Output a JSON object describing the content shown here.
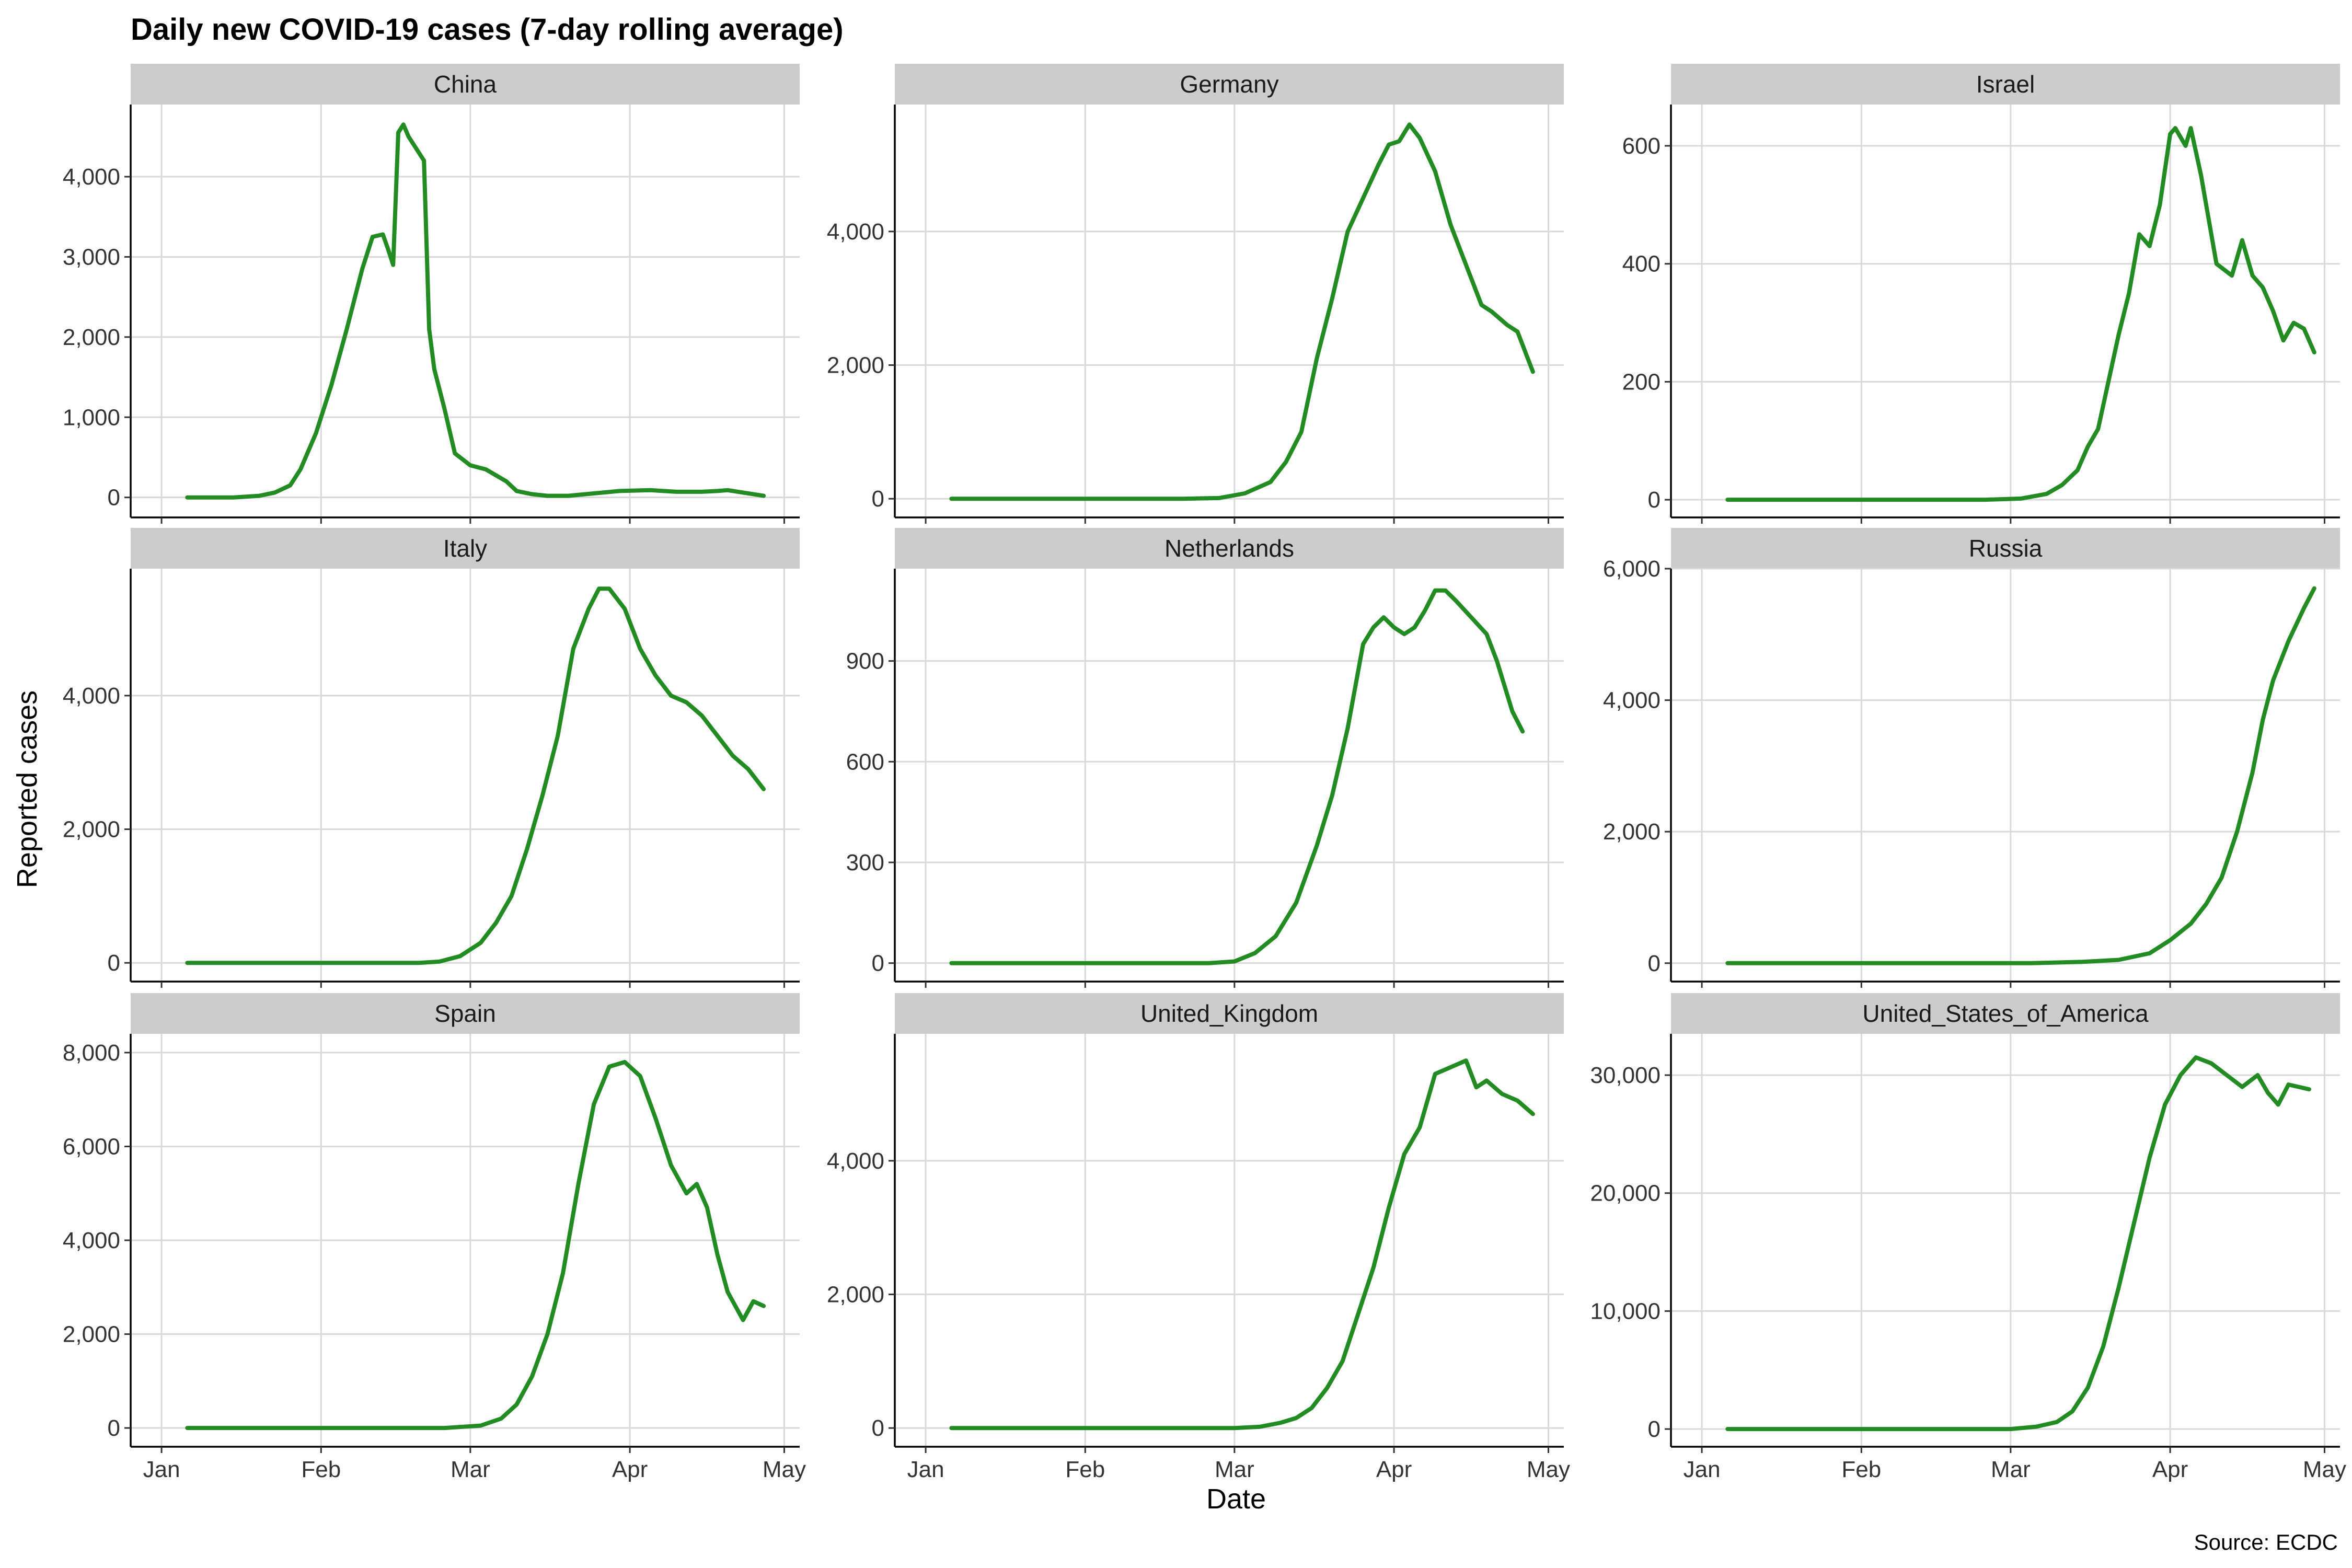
{
  "chart_data": {
    "type": "line",
    "title": "Daily new COVID-19 cases (7-day rolling average)",
    "xlabel": "Date",
    "ylabel": "Reported cases",
    "caption": "Source: ECDC",
    "x_ticks": [
      "Jan",
      "Feb",
      "Mar",
      "Apr",
      "May"
    ],
    "x_tick_dates": [
      "2020-01-01",
      "2020-02-01",
      "2020-03-01",
      "2020-04-01",
      "2020-05-01"
    ],
    "xlim": [
      "2019-12-26",
      "2020-05-04"
    ],
    "series_start": "2020-01-06",
    "grid": true,
    "colors": {
      "line": "#228B22",
      "strip": "#cccccc",
      "grid": "#d9d9d9"
    },
    "facets": [
      {
        "name": "China",
        "ylim": [
          -250,
          4900
        ],
        "y_ticks": [
          0,
          1000,
          2000,
          3000,
          4000
        ],
        "y_tick_labels": [
          "0",
          "1,000",
          "2,000",
          "3,000",
          "4,000"
        ],
        "points": [
          [
            "2020-01-06",
            0
          ],
          [
            "2020-01-10",
            0
          ],
          [
            "2020-01-15",
            0
          ],
          [
            "2020-01-20",
            20
          ],
          [
            "2020-01-23",
            60
          ],
          [
            "2020-01-26",
            150
          ],
          [
            "2020-01-28",
            350
          ],
          [
            "2020-01-31",
            800
          ],
          [
            "2020-02-03",
            1400
          ],
          [
            "2020-02-06",
            2100
          ],
          [
            "2020-02-09",
            2850
          ],
          [
            "2020-02-11",
            3250
          ],
          [
            "2020-02-13",
            3280
          ],
          [
            "2020-02-14",
            3100
          ],
          [
            "2020-02-15",
            2900
          ],
          [
            "2020-02-16",
            4550
          ],
          [
            "2020-02-17",
            4650
          ],
          [
            "2020-02-18",
            4500
          ],
          [
            "2020-02-20",
            4300
          ],
          [
            "2020-02-21",
            4200
          ],
          [
            "2020-02-22",
            2100
          ],
          [
            "2020-02-23",
            1600
          ],
          [
            "2020-02-25",
            1100
          ],
          [
            "2020-02-27",
            550
          ],
          [
            "2020-03-01",
            400
          ],
          [
            "2020-03-04",
            350
          ],
          [
            "2020-03-08",
            200
          ],
          [
            "2020-03-10",
            80
          ],
          [
            "2020-03-13",
            40
          ],
          [
            "2020-03-16",
            20
          ],
          [
            "2020-03-20",
            20
          ],
          [
            "2020-03-25",
            50
          ],
          [
            "2020-03-30",
            80
          ],
          [
            "2020-04-05",
            90
          ],
          [
            "2020-04-10",
            70
          ],
          [
            "2020-04-15",
            70
          ],
          [
            "2020-04-18",
            80
          ],
          [
            "2020-04-20",
            90
          ],
          [
            "2020-04-23",
            60
          ],
          [
            "2020-04-27",
            20
          ]
        ]
      },
      {
        "name": "Germany",
        "ylim": [
          -280,
          5900
        ],
        "y_ticks": [
          0,
          2000,
          4000
        ],
        "y_tick_labels": [
          "0",
          "2,000",
          "4,000"
        ],
        "points": [
          [
            "2020-01-06",
            0
          ],
          [
            "2020-02-20",
            0
          ],
          [
            "2020-02-27",
            10
          ],
          [
            "2020-03-03",
            80
          ],
          [
            "2020-03-08",
            250
          ],
          [
            "2020-03-11",
            550
          ],
          [
            "2020-03-14",
            1000
          ],
          [
            "2020-03-17",
            2100
          ],
          [
            "2020-03-20",
            3000
          ],
          [
            "2020-03-23",
            4000
          ],
          [
            "2020-03-26",
            4500
          ],
          [
            "2020-03-29",
            5000
          ],
          [
            "2020-03-31",
            5300
          ],
          [
            "2020-04-02",
            5350
          ],
          [
            "2020-04-04",
            5600
          ],
          [
            "2020-04-06",
            5400
          ],
          [
            "2020-04-09",
            4900
          ],
          [
            "2020-04-12",
            4100
          ],
          [
            "2020-04-15",
            3500
          ],
          [
            "2020-04-18",
            2900
          ],
          [
            "2020-04-20",
            2800
          ],
          [
            "2020-04-23",
            2600
          ],
          [
            "2020-04-25",
            2500
          ],
          [
            "2020-04-28",
            1900
          ]
        ]
      },
      {
        "name": "Israel",
        "ylim": [
          -30,
          670
        ],
        "y_ticks": [
          0,
          200,
          400,
          600
        ],
        "y_tick_labels": [
          "0",
          "200",
          "400",
          "600"
        ],
        "points": [
          [
            "2020-01-06",
            0
          ],
          [
            "2020-02-25",
            0
          ],
          [
            "2020-03-03",
            2
          ],
          [
            "2020-03-08",
            10
          ],
          [
            "2020-03-11",
            25
          ],
          [
            "2020-03-14",
            50
          ],
          [
            "2020-03-16",
            90
          ],
          [
            "2020-03-18",
            120
          ],
          [
            "2020-03-20",
            200
          ],
          [
            "2020-03-22",
            280
          ],
          [
            "2020-03-24",
            350
          ],
          [
            "2020-03-26",
            450
          ],
          [
            "2020-03-28",
            430
          ],
          [
            "2020-03-30",
            500
          ],
          [
            "2020-04-01",
            620
          ],
          [
            "2020-04-02",
            630
          ],
          [
            "2020-04-04",
            600
          ],
          [
            "2020-04-05",
            630
          ],
          [
            "2020-04-07",
            550
          ],
          [
            "2020-04-08",
            500
          ],
          [
            "2020-04-10",
            400
          ],
          [
            "2020-04-13",
            380
          ],
          [
            "2020-04-15",
            440
          ],
          [
            "2020-04-17",
            380
          ],
          [
            "2020-04-19",
            360
          ],
          [
            "2020-04-21",
            320
          ],
          [
            "2020-04-23",
            270
          ],
          [
            "2020-04-25",
            300
          ],
          [
            "2020-04-27",
            290
          ],
          [
            "2020-04-29",
            250
          ]
        ]
      },
      {
        "name": "Italy",
        "ylim": [
          -280,
          5900
        ],
        "y_ticks": [
          0,
          2000,
          4000
        ],
        "y_tick_labels": [
          "0",
          "2,000",
          "4,000"
        ],
        "points": [
          [
            "2020-01-06",
            0
          ],
          [
            "2020-02-20",
            0
          ],
          [
            "2020-02-24",
            20
          ],
          [
            "2020-02-28",
            100
          ],
          [
            "2020-03-03",
            300
          ],
          [
            "2020-03-06",
            600
          ],
          [
            "2020-03-09",
            1000
          ],
          [
            "2020-03-12",
            1700
          ],
          [
            "2020-03-15",
            2500
          ],
          [
            "2020-03-18",
            3400
          ],
          [
            "2020-03-21",
            4700
          ],
          [
            "2020-03-24",
            5300
          ],
          [
            "2020-03-26",
            5600
          ],
          [
            "2020-03-28",
            5600
          ],
          [
            "2020-03-31",
            5300
          ],
          [
            "2020-04-03",
            4700
          ],
          [
            "2020-04-06",
            4300
          ],
          [
            "2020-04-09",
            4000
          ],
          [
            "2020-04-12",
            3900
          ],
          [
            "2020-04-15",
            3700
          ],
          [
            "2020-04-18",
            3400
          ],
          [
            "2020-04-21",
            3100
          ],
          [
            "2020-04-24",
            2900
          ],
          [
            "2020-04-27",
            2600
          ]
        ]
      },
      {
        "name": "Netherlands",
        "ylim": [
          -55,
          1175
        ],
        "y_ticks": [
          0,
          300,
          600,
          900
        ],
        "y_tick_labels": [
          "0",
          "300",
          "600",
          "900"
        ],
        "points": [
          [
            "2020-01-06",
            0
          ],
          [
            "2020-02-25",
            0
          ],
          [
            "2020-03-01",
            5
          ],
          [
            "2020-03-05",
            30
          ],
          [
            "2020-03-09",
            80
          ],
          [
            "2020-03-13",
            180
          ],
          [
            "2020-03-17",
            350
          ],
          [
            "2020-03-20",
            500
          ],
          [
            "2020-03-23",
            700
          ],
          [
            "2020-03-26",
            950
          ],
          [
            "2020-03-28",
            1000
          ],
          [
            "2020-03-30",
            1030
          ],
          [
            "2020-04-01",
            1000
          ],
          [
            "2020-04-03",
            980
          ],
          [
            "2020-04-05",
            1000
          ],
          [
            "2020-04-07",
            1050
          ],
          [
            "2020-04-09",
            1110
          ],
          [
            "2020-04-11",
            1110
          ],
          [
            "2020-04-13",
            1080
          ],
          [
            "2020-04-16",
            1030
          ],
          [
            "2020-04-19",
            980
          ],
          [
            "2020-04-21",
            900
          ],
          [
            "2020-04-24",
            750
          ],
          [
            "2020-04-26",
            690
          ]
        ]
      },
      {
        "name": "Russia",
        "ylim": [
          -280,
          6000
        ],
        "y_ticks": [
          0,
          2000,
          4000,
          6000
        ],
        "y_tick_labels": [
          "0",
          "2,000",
          "4,000",
          "6,000"
        ],
        "points": [
          [
            "2020-01-06",
            0
          ],
          [
            "2020-03-05",
            0
          ],
          [
            "2020-03-15",
            20
          ],
          [
            "2020-03-22",
            50
          ],
          [
            "2020-03-28",
            150
          ],
          [
            "2020-04-01",
            350
          ],
          [
            "2020-04-05",
            600
          ],
          [
            "2020-04-08",
            900
          ],
          [
            "2020-04-11",
            1300
          ],
          [
            "2020-04-14",
            2000
          ],
          [
            "2020-04-17",
            2900
          ],
          [
            "2020-04-19",
            3700
          ],
          [
            "2020-04-21",
            4300
          ],
          [
            "2020-04-24",
            4900
          ],
          [
            "2020-04-27",
            5400
          ],
          [
            "2020-04-29",
            5700
          ]
        ]
      },
      {
        "name": "Spain",
        "ylim": [
          -400,
          8400
        ],
        "y_ticks": [
          0,
          2000,
          4000,
          6000,
          8000
        ],
        "y_tick_labels": [
          "0",
          "2,000",
          "4,000",
          "6,000",
          "8,000"
        ],
        "points": [
          [
            "2020-01-06",
            0
          ],
          [
            "2020-02-25",
            0
          ],
          [
            "2020-03-03",
            50
          ],
          [
            "2020-03-07",
            200
          ],
          [
            "2020-03-10",
            500
          ],
          [
            "2020-03-13",
            1100
          ],
          [
            "2020-03-16",
            2000
          ],
          [
            "2020-03-19",
            3300
          ],
          [
            "2020-03-22",
            5200
          ],
          [
            "2020-03-25",
            6900
          ],
          [
            "2020-03-28",
            7700
          ],
          [
            "2020-03-31",
            7800
          ],
          [
            "2020-04-03",
            7500
          ],
          [
            "2020-04-06",
            6600
          ],
          [
            "2020-04-09",
            5600
          ],
          [
            "2020-04-12",
            5000
          ],
          [
            "2020-04-14",
            5200
          ],
          [
            "2020-04-16",
            4700
          ],
          [
            "2020-04-18",
            3700
          ],
          [
            "2020-04-20",
            2900
          ],
          [
            "2020-04-23",
            2300
          ],
          [
            "2020-04-25",
            2700
          ],
          [
            "2020-04-27",
            2600
          ]
        ]
      },
      {
        "name": "United_Kingdom",
        "ylim": [
          -280,
          5900
        ],
        "y_ticks": [
          0,
          2000,
          4000
        ],
        "y_tick_labels": [
          "0",
          "2,000",
          "4,000"
        ],
        "points": [
          [
            "2020-01-06",
            0
          ],
          [
            "2020-03-01",
            0
          ],
          [
            "2020-03-06",
            20
          ],
          [
            "2020-03-10",
            80
          ],
          [
            "2020-03-13",
            150
          ],
          [
            "2020-03-16",
            300
          ],
          [
            "2020-03-19",
            600
          ],
          [
            "2020-03-22",
            1000
          ],
          [
            "2020-03-25",
            1700
          ],
          [
            "2020-03-28",
            2400
          ],
          [
            "2020-03-31",
            3300
          ],
          [
            "2020-04-03",
            4100
          ],
          [
            "2020-04-06",
            4500
          ],
          [
            "2020-04-09",
            5300
          ],
          [
            "2020-04-12",
            5400
          ],
          [
            "2020-04-15",
            5500
          ],
          [
            "2020-04-17",
            5100
          ],
          [
            "2020-04-19",
            5200
          ],
          [
            "2020-04-22",
            5000
          ],
          [
            "2020-04-25",
            4900
          ],
          [
            "2020-04-28",
            4700
          ]
        ]
      },
      {
        "name": "United_States_of_America",
        "ylim": [
          -1500,
          33500
        ],
        "y_ticks": [
          0,
          10000,
          20000,
          30000
        ],
        "y_tick_labels": [
          "0",
          "10,000",
          "20,000",
          "30,000"
        ],
        "points": [
          [
            "2020-01-06",
            0
          ],
          [
            "2020-03-01",
            0
          ],
          [
            "2020-03-06",
            200
          ],
          [
            "2020-03-10",
            600
          ],
          [
            "2020-03-13",
            1500
          ],
          [
            "2020-03-16",
            3500
          ],
          [
            "2020-03-19",
            7000
          ],
          [
            "2020-03-22",
            12000
          ],
          [
            "2020-03-25",
            17500
          ],
          [
            "2020-03-28",
            23000
          ],
          [
            "2020-03-31",
            27500
          ],
          [
            "2020-04-03",
            30000
          ],
          [
            "2020-04-06",
            31500
          ],
          [
            "2020-04-09",
            31000
          ],
          [
            "2020-04-12",
            30000
          ],
          [
            "2020-04-15",
            29000
          ],
          [
            "2020-04-18",
            30000
          ],
          [
            "2020-04-20",
            28500
          ],
          [
            "2020-04-22",
            27500
          ],
          [
            "2020-04-24",
            29200
          ],
          [
            "2020-04-26",
            29000
          ],
          [
            "2020-04-28",
            28800
          ]
        ]
      }
    ]
  }
}
